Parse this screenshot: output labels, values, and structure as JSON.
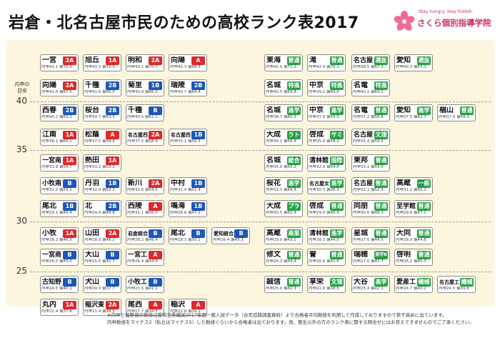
{
  "header": {
    "title": "岩倉・北名古屋市民のための高校ランク表2017",
    "brand_slogan": "Stay hungry. Stay foolish.",
    "brand_name": "さくら個別指導学院"
  },
  "footnote": [
    "※内申と偏差値の数値は愛知全県模試2017年度一般入試データ（合否追跡調査資料）より合格者平均数値を利用して作成しておりますので若干高めに出ています。",
    "内申数値をマイナス2（私立はマイナス5）した数値ぐらいから合格者は出ております。尚、塾生以外の方のランク表に関する問合せにはお答えできませんのでご了承ください。"
  ],
  "colors": {
    "public_1a": "#e02828",
    "public_1b": "#1e57b6",
    "public_2a": "#e02828",
    "public_2b": "#1e57b6",
    "private": "#26a146",
    "panel": "#fcf6df",
    "brand": "#c8306a"
  },
  "chart_data": {
    "type": "table",
    "y_axis": {
      "label": "内申の目安",
      "ticks": [
        40,
        35,
        30,
        25
      ]
    },
    "schools": [
      {
        "name": "一宮",
        "group": "2A",
        "color": "#e02828",
        "naishin": 43.1,
        "hensachi": 70.3,
        "col": 0,
        "row": 0
      },
      {
        "name": "旭丘",
        "group": "1A",
        "color": "#e02828",
        "naishin": 43.3,
        "hensachi": 72.3,
        "col": 1,
        "row": 0
      },
      {
        "name": "明和",
        "group": "2A",
        "color": "#e02828",
        "naishin": 43.1,
        "hensachi": 70.7,
        "col": 2,
        "row": 0
      },
      {
        "name": "向陽",
        "group": "A",
        "color": "#e02828",
        "naishin": 42.3,
        "hensachi": 68.3,
        "col": 3,
        "row": 0
      },
      {
        "name": "向陽",
        "group": "2A",
        "color": "#e02828",
        "naishin": 41.8,
        "hensachi": 67.5,
        "col": 0,
        "row": 1
      },
      {
        "name": "千種",
        "group": "2B",
        "color": "#1e57b6",
        "naishin": 41.6,
        "hensachi": 66.0,
        "col": 1,
        "row": 1
      },
      {
        "name": "菊里",
        "group": "1B",
        "color": "#1e57b6",
        "naishin": 40.9,
        "hensachi": 66.0,
        "col": 2,
        "row": 1
      },
      {
        "name": "瑞陵",
        "group": "2B",
        "color": "#1e57b6",
        "naishin": 40.7,
        "hensachi": 64.4,
        "col": 3,
        "row": 1
      },
      {
        "name": "西春",
        "group": "2B",
        "color": "#1e57b6",
        "naishin": 40.2,
        "hensachi": 63.2,
        "col": 0,
        "row": 2
      },
      {
        "name": "桜台",
        "group": "2B",
        "color": "#1e57b6",
        "naishin": 39.7,
        "hensachi": 63.5,
        "col": 1,
        "row": 2
      },
      {
        "name": "千種",
        "group": "B",
        "color": "#1e57b6",
        "naishin": 40.5,
        "hensachi": 61.1,
        "col": 2,
        "row": 2
      },
      {
        "name": "江南",
        "group": "1A",
        "color": "#e02828",
        "naishin": 38.1,
        "hensachi": 60.1,
        "col": 0,
        "row": 3
      },
      {
        "name": "松蔭",
        "group": "A",
        "color": "#e02828",
        "naishin": 37.0,
        "hensachi": 58.6,
        "col": 1,
        "row": 3
      },
      {
        "name": "名古屋西",
        "group": "2A",
        "color": "#e02828",
        "naishin": 37.5,
        "hensachi": 58.9,
        "col": 2,
        "row": 3
      },
      {
        "name": "名古屋西",
        "group": "1B",
        "color": "#1e57b6",
        "naishin": 35.1,
        "hensachi": 56.5,
        "col": 3,
        "row": 3
      },
      {
        "name": "一宮南",
        "group": "1A",
        "color": "#e02828",
        "naishin": 33.8,
        "hensachi": 54.7,
        "col": 0,
        "row": 4
      },
      {
        "name": "熱田",
        "group": "1A",
        "color": "#e02828",
        "naishin": 33.2,
        "hensachi": 53.2,
        "col": 1,
        "row": 4
      },
      {
        "name": "小牧南",
        "group": "B",
        "color": "#1e57b6",
        "naishin": 32.0,
        "hensachi": 53.2,
        "col": 0,
        "row": 5
      },
      {
        "name": "丹羽",
        "group": "1B",
        "color": "#1e57b6",
        "naishin": 32.0,
        "hensachi": 52.3,
        "col": 1,
        "row": 5
      },
      {
        "name": "新川",
        "group": "2A",
        "color": "#e02828",
        "naishin": 31.6,
        "hensachi": 54.0,
        "col": 2,
        "row": 5
      },
      {
        "name": "中村",
        "group": "1B",
        "color": "#1e57b6",
        "naishin": 31.4,
        "hensachi": 51.4,
        "col": 3,
        "row": 5
      },
      {
        "name": "尾北",
        "group": "1B",
        "color": "#1e57b6",
        "naishin": 29.1,
        "hensachi": 49.4,
        "col": 0,
        "row": 6
      },
      {
        "name": "北",
        "group": "2B",
        "color": "#1e57b6",
        "naishin": 29.4,
        "hensachi": 48.8,
        "col": 1,
        "row": 6
      },
      {
        "name": "西陵",
        "group": "A",
        "color": "#e02828",
        "naishin": 31.1,
        "hensachi": 50.0,
        "col": 2,
        "row": 6
      },
      {
        "name": "鳴海",
        "group": "1B",
        "color": "#1e57b6",
        "naishin": 28.6,
        "hensachi": 47.2,
        "col": 3,
        "row": 6
      },
      {
        "name": "小牧",
        "group": "1A",
        "color": "#e02828",
        "naishin": 28.2,
        "hensachi": 46.5,
        "col": 0,
        "row": 7
      },
      {
        "name": "山田",
        "group": "2A",
        "color": "#e02828",
        "naishin": 28.3,
        "hensachi": 46.2,
        "col": 1,
        "row": 7
      },
      {
        "name": "岩倉総合",
        "group": "B",
        "color": "#1e57b6",
        "naishin": 28.2,
        "hensachi": 46.4,
        "col": 2,
        "row": 7
      },
      {
        "name": "尾北",
        "group": "B",
        "color": "#1e57b6",
        "naishin": 28.3,
        "hensachi": 50.1,
        "col": 3,
        "row": 7
      },
      {
        "name": "愛知総合工科",
        "group": "B",
        "color": "#1e57b6",
        "naishin": 26.4,
        "hensachi": 49.3,
        "col": 4,
        "row": 7
      },
      {
        "name": "一宮商",
        "group": "B",
        "color": "#1e57b6",
        "naishin": 26.5,
        "hensachi": 43.0,
        "col": 0,
        "row": 8
      },
      {
        "name": "大山",
        "group": "B",
        "color": "#1e57b6",
        "naishin": 25.6,
        "hensachi": 42.7,
        "col": 1,
        "row": 8
      },
      {
        "name": "一宮工",
        "group": "A",
        "color": "#e02828",
        "naishin": 26.4,
        "hensachi": 44.9,
        "col": 2,
        "row": 8
      },
      {
        "name": "古知野",
        "group": "B",
        "color": "#1e57b6",
        "naishin": 24.5,
        "hensachi": 40.1,
        "col": 0,
        "row": 9
      },
      {
        "name": "犬山",
        "group": "B",
        "color": "#1e57b6",
        "naishin": 24.0,
        "hensachi": 37.7,
        "col": 1,
        "row": 9
      },
      {
        "name": "小牧工",
        "group": "B",
        "color": "#1e57b6",
        "naishin": 23.5,
        "hensachi": 41.1,
        "col": 2,
        "row": 9
      },
      {
        "name": "丸内",
        "group": "1A",
        "color": "#e02828",
        "naishin": 22.4,
        "hensachi": 37.6,
        "col": 0,
        "row": 10
      },
      {
        "name": "稲沢東",
        "group": "2A",
        "color": "#e02828",
        "naishin": 21.4,
        "hensachi": 38.5,
        "col": 1,
        "row": 10
      },
      {
        "name": "尾西",
        "group": "A",
        "color": "#e02828",
        "naishin": 17.7,
        "hensachi": 34.5,
        "col": 2,
        "row": 10
      },
      {
        "name": "稲沢",
        "group": "A",
        "color": "#e02828",
        "naishin": 22.8,
        "hensachi": 39.1,
        "col": 3,
        "row": 10
      },
      {
        "name": "東海",
        "group": "普通",
        "color": "#26a146",
        "naishin": 42.0,
        "hensachi": 72.2,
        "col": 5,
        "row": 0
      },
      {
        "name": "滝",
        "group": "普通",
        "color": "#26a146",
        "naishin": 42.4,
        "hensachi": 70.1,
        "col": 6,
        "row": 0
      },
      {
        "name": "名古屋",
        "group": "選抜",
        "color": "#26a146",
        "naishin": 38.5,
        "hensachi": 67.3,
        "col": 7,
        "row": 0
      },
      {
        "name": "愛知",
        "group": "選抜",
        "color": "#26a146",
        "naishin": 40.3,
        "hensachi": 67.3,
        "col": 8,
        "row": 0
      },
      {
        "name": "名城",
        "group": "特進",
        "color": "#26a146",
        "naishin": 40.5,
        "hensachi": 64.8,
        "col": 5,
        "row": 1
      },
      {
        "name": "中京",
        "group": "特進",
        "color": "#26a146",
        "naishin": 39.1,
        "hensachi": 64.6,
        "col": 6,
        "row": 1
      },
      {
        "name": "名電",
        "group": "特進",
        "color": "#26a146",
        "naishin": 40.1,
        "hensachi": 64.1,
        "col": 7,
        "row": 1
      },
      {
        "name": "名城",
        "group": "進学",
        "color": "#26a146",
        "naishin": 38.7,
        "hensachi": 60.3,
        "col": 5,
        "row": 2
      },
      {
        "name": "中京",
        "group": "進学",
        "color": "#26a146",
        "naishin": 37.6,
        "hensachi": 59.0,
        "col": 6,
        "row": 2
      },
      {
        "name": "名電",
        "group": "普通",
        "color": "#26a146",
        "naishin": 37.2,
        "hensachi": 58.6,
        "col": 7,
        "row": 2
      },
      {
        "name": "愛知",
        "group": "進学",
        "color": "#26a146",
        "naishin": 37.5,
        "hensachi": 62.7,
        "col": 8,
        "row": 2
      },
      {
        "name": "椙山",
        "group": "普通",
        "color": "#26a146",
        "naishin": 37.4,
        "hensachi": 59.3,
        "col": 9,
        "row": 2
      },
      {
        "name": "大成",
        "group": "ラト",
        "color": "#26a146",
        "naishin": 36.1,
        "hensachi": 58.8,
        "col": 5,
        "row": 3
      },
      {
        "name": "啓成",
        "group": "サミ",
        "color": "#26a146",
        "naishin": 35.6,
        "hensachi": 58.2,
        "col": 6,
        "row": 3
      },
      {
        "name": "名古屋",
        "group": "文理",
        "color": "#26a146",
        "naishin": 35.4,
        "hensachi": 59.5,
        "col": 7,
        "row": 3
      },
      {
        "name": "名城",
        "group": "総合",
        "color": "#26a146",
        "naishin": 35.0,
        "hensachi": 55.2,
        "col": 5,
        "row": 4
      },
      {
        "name": "清林館",
        "group": "国際",
        "color": "#26a146",
        "naishin": 32.6,
        "hensachi": 54.0,
        "col": 6,
        "row": 4
      },
      {
        "name": "東邦",
        "group": "普通",
        "color": "#26a146",
        "naishin": 33.1,
        "hensachi": 54.0,
        "col": 7,
        "row": 4
      },
      {
        "name": "桜花",
        "group": "進学",
        "color": "#26a146",
        "naishin": 31.2,
        "hensachi": 49.8,
        "col": 5,
        "row": 5
      },
      {
        "name": "名古屋女",
        "group": "進学",
        "color": "#26a146",
        "naishin": 30.3,
        "hensachi": 48.3,
        "col": 6,
        "row": 5
      },
      {
        "name": "名古屋",
        "group": "普通",
        "color": "#26a146",
        "naishin": 32.1,
        "hensachi": 52.9,
        "col": 7,
        "row": 5
      },
      {
        "name": "高蔵",
        "group": "一般",
        "color": "#26a146",
        "naishin": 31.2,
        "hensachi": 50.2,
        "col": 8,
        "row": 5
      },
      {
        "name": "大成",
        "group": "プラ",
        "color": "#26a146",
        "naishin": 30.5,
        "hensachi": 50.4,
        "col": 5,
        "row": 6
      },
      {
        "name": "啓成",
        "group": "普通",
        "color": "#26a146",
        "naishin": 29.0,
        "hensachi": 48.9,
        "col": 6,
        "row": 6
      },
      {
        "name": "同朋",
        "group": "普通",
        "color": "#26a146",
        "naishin": 30.6,
        "hensachi": 48.3,
        "col": 7,
        "row": 6
      },
      {
        "name": "至学館",
        "group": "普通",
        "color": "#26a146",
        "naishin": 29.6,
        "hensachi": 47.1,
        "col": 8,
        "row": 6
      },
      {
        "name": "高蔵",
        "group": "商業",
        "color": "#26a146",
        "naishin": 29.0,
        "hensachi": 43.1,
        "col": 5,
        "row": 7
      },
      {
        "name": "清林館",
        "group": "進学",
        "color": "#26a146",
        "naishin": 28.3,
        "hensachi": 44.0,
        "col": 6,
        "row": 7
      },
      {
        "name": "星城",
        "group": "普通",
        "color": "#26a146",
        "naishin": 27.6,
        "hensachi": 44.5,
        "col": 7,
        "row": 7
      },
      {
        "name": "大同",
        "group": "普通",
        "color": "#26a146",
        "naishin": 26.0,
        "hensachi": 44.6,
        "col": 8,
        "row": 7
      },
      {
        "name": "修文",
        "group": "普通",
        "color": "#26a146",
        "naishin": 26.3,
        "hensachi": 44.4,
        "col": 5,
        "row": 8
      },
      {
        "name": "誉",
        "group": "普通",
        "color": "#26a146",
        "naishin": 26.6,
        "hensachi": 41.6,
        "col": 6,
        "row": 8
      },
      {
        "name": "瑞穂",
        "group": "進学B",
        "color": "#26a146",
        "naishin": 27.0,
        "hensachi": 41.7,
        "col": 7,
        "row": 8
      },
      {
        "name": "啓明",
        "group": "普通",
        "color": "#26a146",
        "naishin": 26.2,
        "hensachi": 40.3,
        "col": 8,
        "row": 8
      },
      {
        "name": "誠信",
        "group": "普通",
        "color": "#26a146",
        "naishin": 25.0,
        "hensachi": 42.3,
        "col": 5,
        "row": 9
      },
      {
        "name": "享栄",
        "group": "文理",
        "color": "#26a146",
        "naishin": 22.8,
        "hensachi": 38.5,
        "col": 6,
        "row": 9
      },
      {
        "name": "大谷",
        "group": "進学",
        "color": "#26a146",
        "naishin": 25.4,
        "hensachi": 42.1,
        "col": 7,
        "row": 9
      },
      {
        "name": "愛産工",
        "group": "機械",
        "color": "#26a146",
        "naishin": 24.7,
        "hensachi": 40.2,
        "col": 8,
        "row": 9
      },
      {
        "name": "名古屋工",
        "group": "機械",
        "color": "#26a146",
        "naishin": 24.5,
        "hensachi": 39.8,
        "col": 9,
        "row": 9
      }
    ]
  }
}
